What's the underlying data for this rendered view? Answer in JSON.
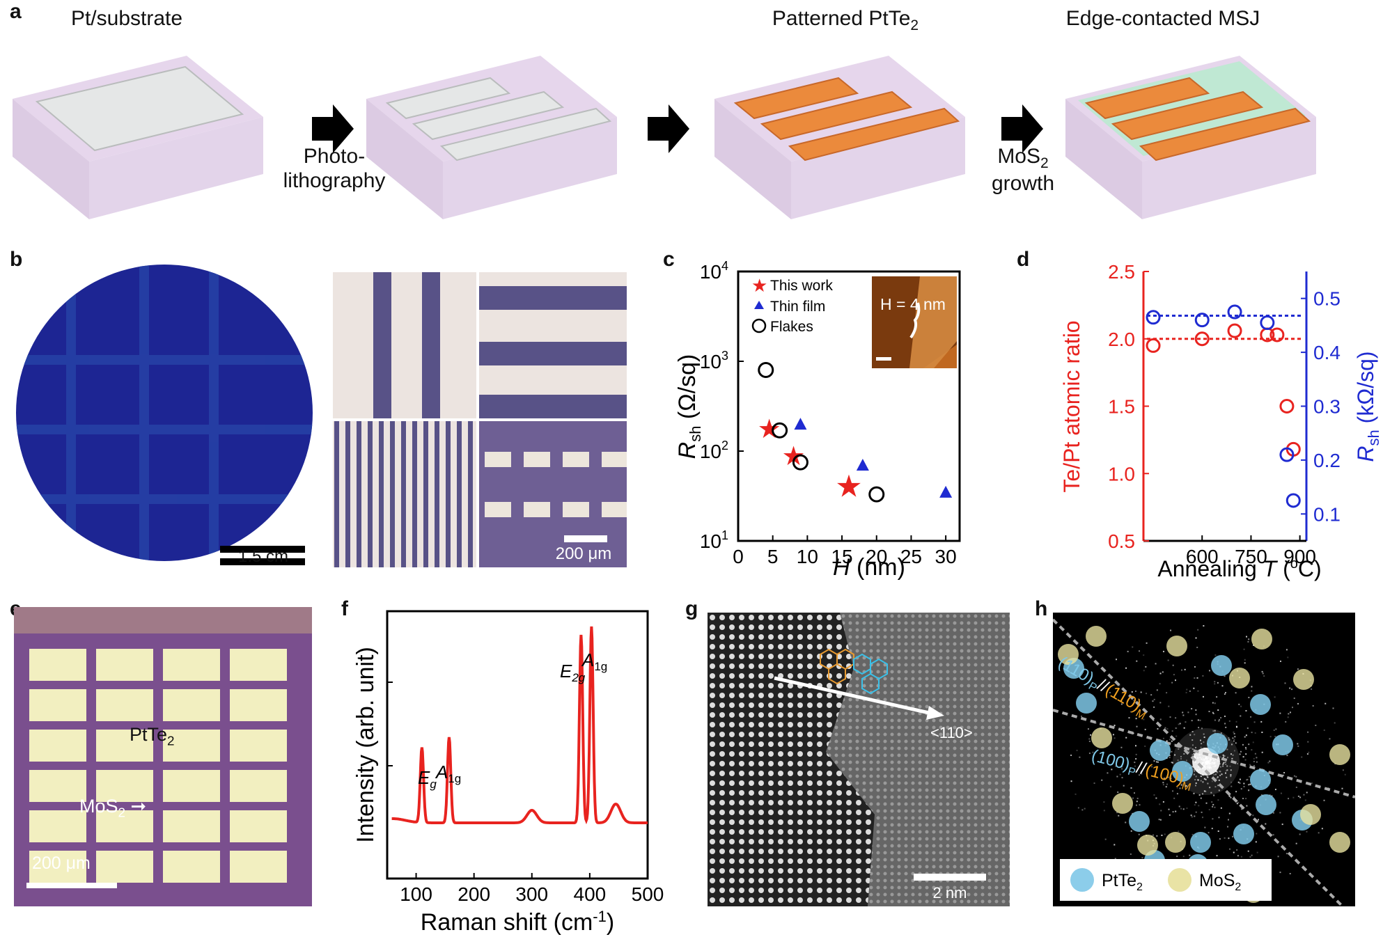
{
  "panels": {
    "a": "a",
    "b": "b",
    "c": "c",
    "d": "d",
    "e": "e",
    "f": "f",
    "g": "g",
    "h": "h"
  },
  "panel_a": {
    "stage1": "Pt/substrate",
    "stage3": "Patterned PtTe",
    "stage3_sub": "2",
    "stage4": "Edge-contacted MSJ",
    "step1_line1": "Photo-",
    "step1_line2": "lithography",
    "step3_line1": "MoS",
    "step3_sub": "2",
    "step3_line2": "growth",
    "colors": {
      "substrate": "#e6d6ec",
      "metal": "#e4e6e6",
      "pttes": "#eb8a3c",
      "mos2": "#bfe8d3"
    }
  },
  "panel_b": {
    "scale_wafer": "1.5 cm",
    "scale_micro": "200 μm",
    "colors": {
      "wafer": "#1d2593",
      "stripe": "#585287",
      "light": "#ece4e0"
    }
  },
  "chart_data": [
    {
      "panel": "c",
      "type": "scatter",
      "xlabel": "H (nm)",
      "ylabel": "Rsh (Ω/sq)",
      "yscale": "log",
      "xlim": [
        0,
        32
      ],
      "ylim": [
        10,
        10000
      ],
      "xticks": [
        "0",
        "5",
        "10",
        "15",
        "20",
        "25",
        "30"
      ],
      "yticks": [
        "10",
        "10",
        "10",
        "10"
      ],
      "yticks_exp": [
        "1",
        "2",
        "3",
        "4"
      ],
      "legend_position": "top-left",
      "series": [
        {
          "name": "This work",
          "marker": "star",
          "color": "#e8231f",
          "x": [
            4.5,
            8,
            16
          ],
          "y": [
            180,
            90,
            40
          ]
        },
        {
          "name": "Thin film",
          "marker": "triangle",
          "color": "#1f2bd1",
          "x": [
            9,
            18,
            30
          ],
          "y": [
            200,
            70,
            35
          ]
        },
        {
          "name": "Flakes",
          "marker": "circle",
          "color": "#000000",
          "x": [
            4,
            6,
            9,
            20
          ],
          "y": [
            800,
            170,
            75,
            33
          ]
        }
      ],
      "inset_label": "H = 4 nm"
    },
    {
      "panel": "d",
      "type": "scatter",
      "xlabel": "Annealing T (oC)",
      "ylabel_left": "Te/Pt atomic ratio",
      "ylabel_right": "Rsh (kΩ/sq)",
      "xlim": [
        420,
        920
      ],
      "ylim_left": [
        0.5,
        2.5
      ],
      "ylim_right": [
        0.05,
        0.55
      ],
      "xticks": [
        "600",
        "750",
        "900"
      ],
      "yticks_left": [
        "0.5",
        "1.0",
        "1.5",
        "2.0",
        "2.5"
      ],
      "yticks_right": [
        "0.1",
        "0.2",
        "0.3",
        "0.4",
        "0.5"
      ],
      "series": [
        {
          "name": "Te/Pt",
          "axis": "left",
          "color": "#e8231f",
          "x": [
            450,
            600,
            700,
            800,
            830,
            860,
            880
          ],
          "y": [
            1.95,
            2.0,
            2.06,
            2.03,
            2.03,
            1.5,
            1.18
          ]
        },
        {
          "name": "Rsh",
          "axis": "right",
          "color": "#1f2bd1",
          "x": [
            450,
            600,
            700,
            800,
            860,
            880
          ],
          "y": [
            0.465,
            0.46,
            0.475,
            0.455,
            0.21,
            0.125
          ]
        }
      ],
      "ref_lines": [
        {
          "axis": "left",
          "value": 2.0,
          "color": "#e8231f"
        },
        {
          "axis": "right",
          "value": 0.468,
          "color": "#1f2bd1"
        }
      ]
    },
    {
      "panel": "f",
      "type": "line",
      "xlabel": "Raman shift (cm-1)",
      "ylabel": "Intensity (arb. unit)",
      "xlim": [
        50,
        500
      ],
      "xticks": [
        "100",
        "200",
        "300",
        "400",
        "500"
      ],
      "series": [
        {
          "name": "",
          "color": "#e8231f",
          "peaks": [
            {
              "x": 110,
              "h": 0.36
            },
            {
              "x": 157,
              "h": 0.41
            },
            {
              "x": 300,
              "h": 0.06
            },
            {
              "x": 385,
              "h": 0.9
            },
            {
              "x": 403,
              "h": 0.94
            },
            {
              "x": 445,
              "h": 0.09
            }
          ]
        }
      ],
      "annotations": [
        "E",
        "g",
        "A",
        "1g",
        "E",
        "2g",
        "A",
        "1g"
      ]
    }
  ],
  "panel_c_legend": [
    "This work",
    "Thin film",
    "Flakes"
  ],
  "panel_e": {
    "label_ptte": "PtTe",
    "label_ptte_sub": "2",
    "label_mos": "MoS",
    "label_mos_sub": "2",
    "scale": "200 μm",
    "colors": {
      "grid": "#7a4f8e",
      "pad": "#f2efc0"
    }
  },
  "panel_g": {
    "direction": "<110>",
    "scale": "2 nm"
  },
  "panel_h": {
    "label1_a": "(110)",
    "label1_b": "P",
    "label1_c": "//(110)",
    "label1_d": "M",
    "label2_a": "(100)",
    "label2_b": "P",
    "label2_c": "//(100)",
    "label2_d": "M",
    "legend_ptte": "PtTe",
    "legend_ptte_sub": "2",
    "legend_mos": "MoS",
    "legend_mos_sub": "2",
    "colors": {
      "ptte": "#7fc8e8",
      "mos": "#e8e2a0"
    }
  }
}
